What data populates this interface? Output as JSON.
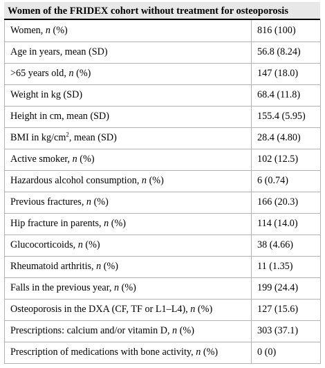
{
  "table": {
    "title": "Women of the FRIDEX cohort without treatment for osteoporosis",
    "rows": [
      {
        "label": "Women, ",
        "italic": "n",
        "suffix": " (%)",
        "value": "816 (100)"
      },
      {
        "label": "Age in years, mean (SD)",
        "value": "56.8 (8.24)"
      },
      {
        "label": ">65 years old, ",
        "italic": "n",
        "suffix": " (%)",
        "value": "147 (18.0)"
      },
      {
        "label": "Weight in kg (SD)",
        "value": "68.4 (11.8)"
      },
      {
        "label": "Height in cm, mean (SD)",
        "value": "155.4 (5.95)"
      },
      {
        "label": "BMI in kg/cm",
        "sup": "2",
        "suffix": ", mean (SD)",
        "value": "28.4 (4.80)"
      },
      {
        "label": "Active smoker, ",
        "italic": "n",
        "suffix": " (%)",
        "value": "102 (12.5)"
      },
      {
        "label": "Hazardous alcohol consumption, ",
        "italic": "n",
        "suffix": " (%)",
        "value": "6 (0.74)"
      },
      {
        "label": "Previous fractures, ",
        "italic": "n",
        "suffix": " (%)",
        "value": "166 (20.3)"
      },
      {
        "label": "Hip fracture in parents, ",
        "italic": "n",
        "suffix": " (%)",
        "value": "114 (14.0)"
      },
      {
        "label": "Glucocorticoids, ",
        "italic": "n",
        "suffix": " (%)",
        "value": "38 (4.66)"
      },
      {
        "label": "Rheumatoid arthritis, ",
        "italic": "n",
        "suffix": " (%)",
        "value": "11 (1.35)"
      },
      {
        "label": "Falls in the previous year, ",
        "italic": "n",
        "suffix": " (%)",
        "value": "199 (24.4)"
      },
      {
        "label": "Osteoporosis in the DXA (CF, TF or L1–L4), ",
        "italic": "n",
        "suffix": " (%)",
        "value": "127 (15.6)"
      },
      {
        "label": "Prescriptions: calcium and/or vitamin D, ",
        "italic": "n",
        "suffix": " (%)",
        "value": "303 (37.1)"
      },
      {
        "label": "Prescription of medications with bone activity, ",
        "italic": "n",
        "suffix": " (%)",
        "value": "0 (0)"
      }
    ]
  }
}
